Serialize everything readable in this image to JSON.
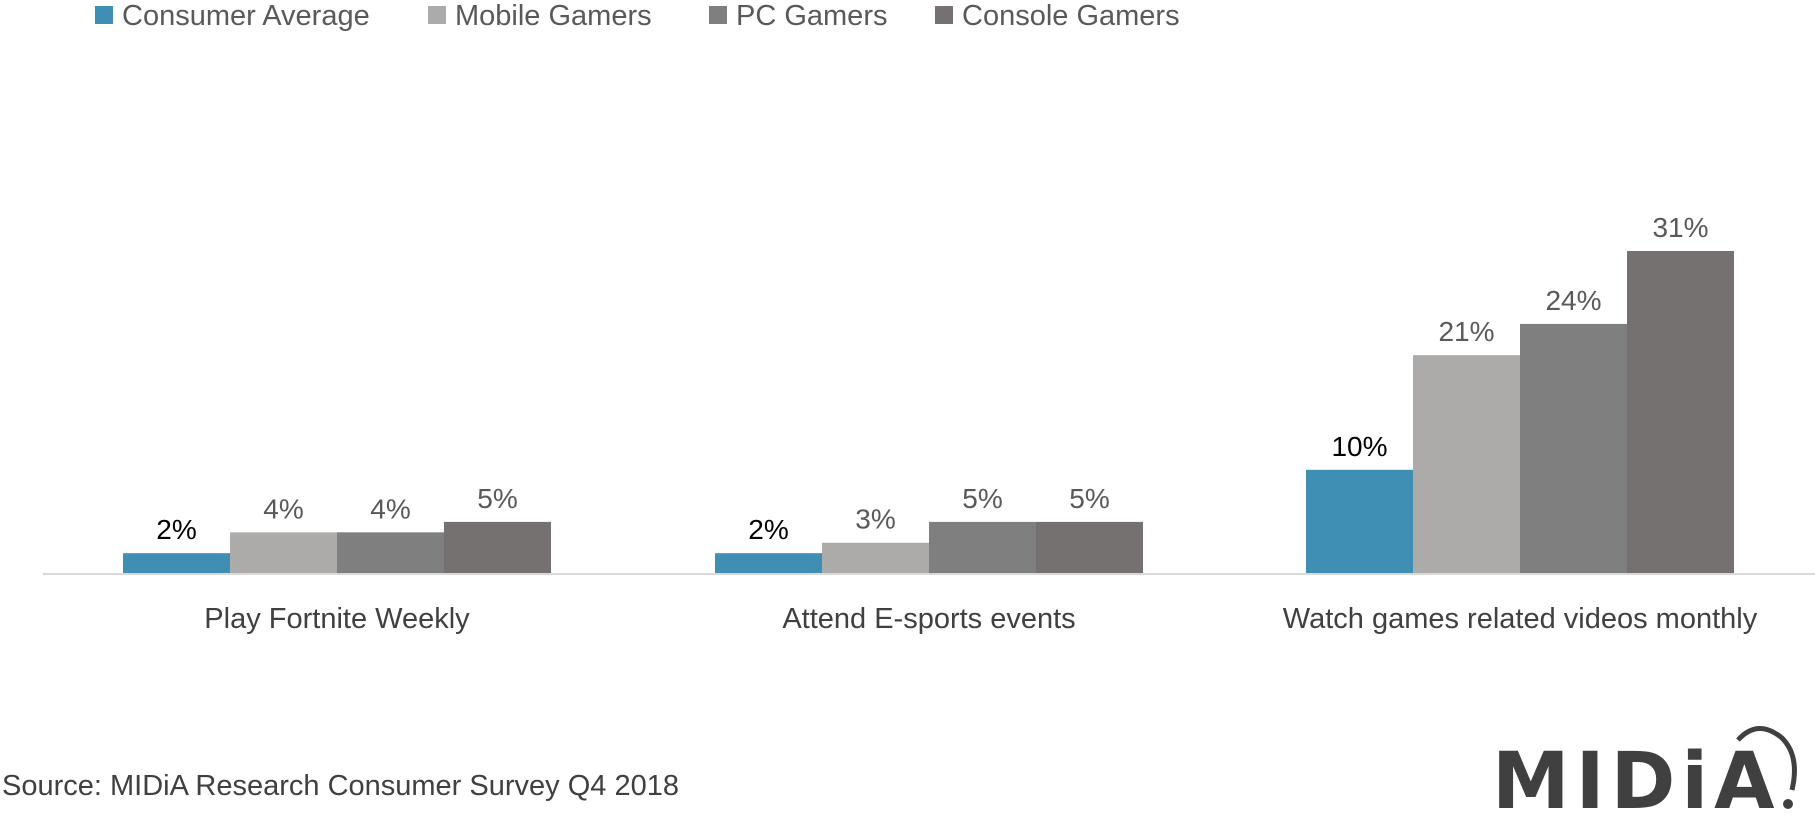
{
  "chart_data": {
    "type": "bar",
    "categories": [
      "Play Fortnite Weekly",
      "Attend E-sports events",
      "Watch games related videos monthly"
    ],
    "series": [
      {
        "name": "Consumer Average",
        "values": [
          2,
          2,
          10
        ],
        "labels": [
          "2%",
          "2%",
          "10%"
        ],
        "color": "#3F8FB4",
        "label_color": "#000000"
      },
      {
        "name": "Mobile Gamers",
        "values": [
          4,
          3,
          21
        ],
        "labels": [
          "4%",
          "3%",
          "21%"
        ],
        "color": "#ADAAAA",
        "label_color": "#595959"
      },
      {
        "name": "PC Gamers",
        "values": [
          4,
          5,
          24
        ],
        "labels": [
          "4%",
          "5%",
          "24%"
        ],
        "color": "#7F7F7F",
        "label_color": "#595959"
      },
      {
        "name": "Console Gamers",
        "values": [
          5,
          5,
          31
        ],
        "labels": [
          "5%",
          "5%",
          "31%"
        ],
        "color": "#767171",
        "label_color": "#595959"
      }
    ],
    "ylim": [
      0,
      31
    ],
    "legend": "top-left",
    "grid": false
  },
  "footer": {
    "source": "Source: MIDiA Research Consumer Survey Q4 2018",
    "logo_text": "MIDiA."
  }
}
